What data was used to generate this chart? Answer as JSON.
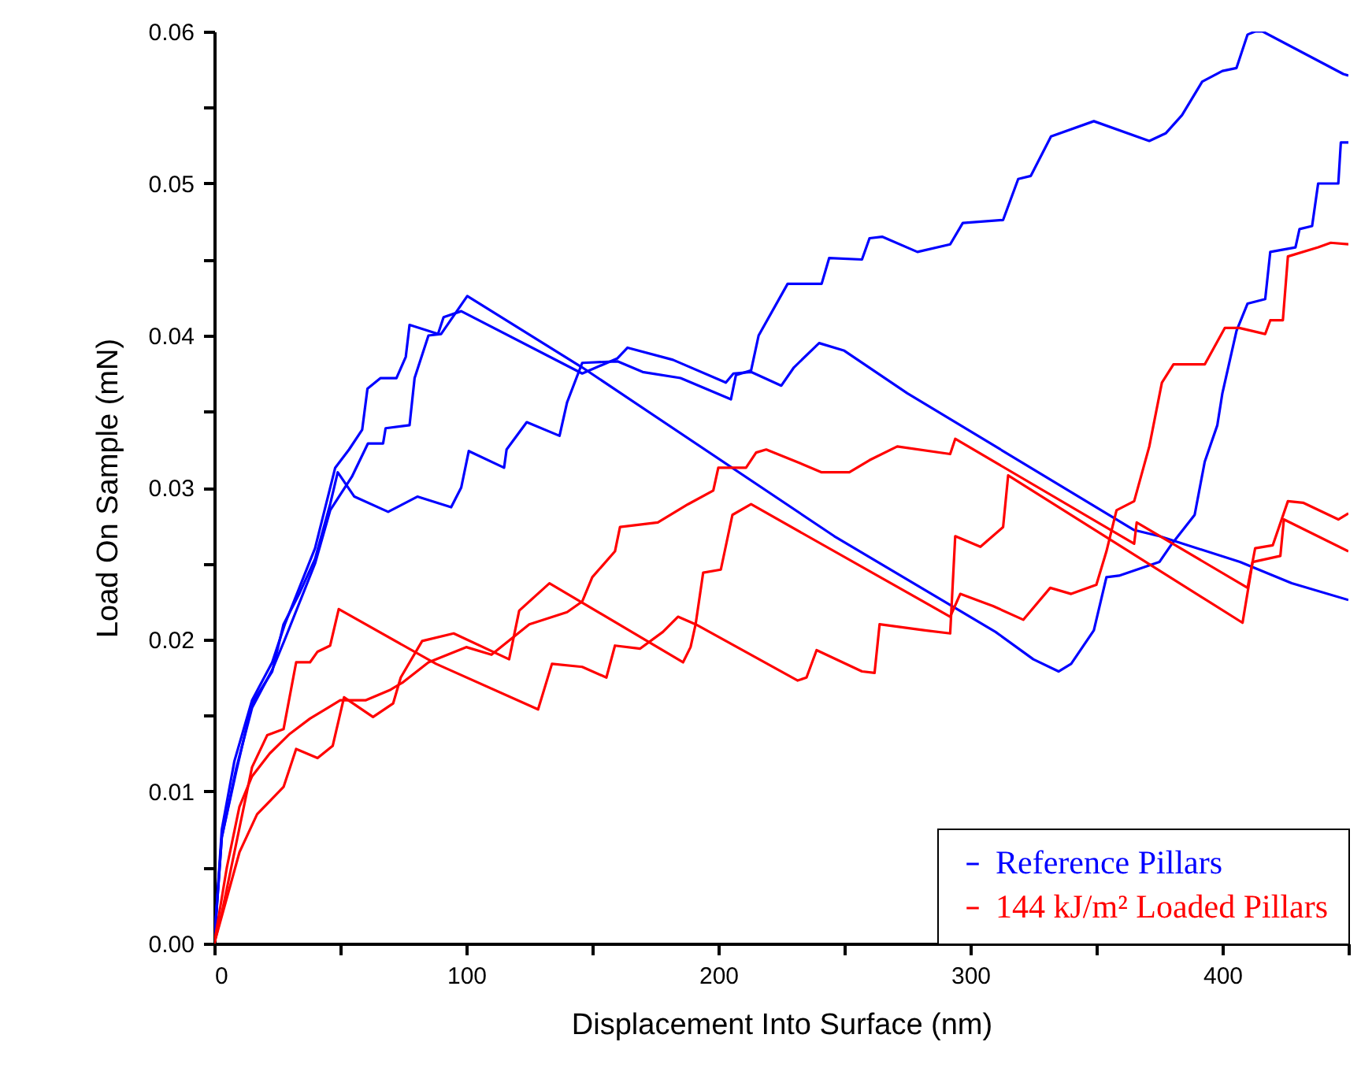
{
  "chart_data": {
    "type": "line",
    "xlabel": "Displacement Into Surface (nm)",
    "ylabel": "Load On Sample (mN)",
    "xlim": [
      0,
      450
    ],
    "ylim": [
      0,
      0.06
    ],
    "xticks": [
      0,
      {
        "value": 50,
        "label": null
      },
      100,
      {
        "value": 150,
        "label": null
      },
      200,
      {
        "value": 250,
        "label": null
      },
      300,
      {
        "value": 350,
        "label": null
      },
      400,
      {
        "value": 450,
        "label": null
      }
    ],
    "yticks": [
      {
        "value": 0,
        "label": "0.00"
      },
      {
        "value": 0.005,
        "label": null
      },
      {
        "value": 0.01,
        "label": "0.01"
      },
      {
        "value": 0.015,
        "label": null
      },
      {
        "value": 0.02,
        "label": "0.02"
      },
      {
        "value": 0.025,
        "label": null
      },
      {
        "value": 0.03,
        "label": "0.03"
      },
      {
        "value": 0.035,
        "label": null
      },
      {
        "value": 0.04,
        "label": "0.04"
      },
      {
        "value": 0.045,
        "label": null
      },
      {
        "value": 0.05,
        "label": "0.05"
      },
      {
        "value": 0.055,
        "label": null
      },
      {
        "value": 0.06,
        "label": "0.06"
      }
    ],
    "grid": false,
    "legend": "bottom right",
    "marker": "none",
    "line_style": "solid",
    "series": [
      {
        "name": "Reference Pillars",
        "color": "#0000ff",
        "x": [
          0,
          3,
          8.7,
          15,
          23,
          27.5,
          33.7,
          40,
          46,
          49,
          55.6,
          69,
          80.6,
          94,
          98,
          101,
          115,
          116,
          124,
          137,
          140,
          146,
          160,
          170,
          185,
          205,
          207,
          213,
          216,
          227.5,
          241,
          244,
          257,
          260,
          265,
          279,
          292,
          297,
          313,
          319,
          324,
          332,
          349,
          371,
          377.5,
          384,
          392,
          400,
          405.6,
          410,
          413,
          416,
          448,
          450
        ],
        "values": [
          0,
          0.007,
          0.0113,
          0.0158,
          0.0179,
          0.021,
          0.023,
          0.0253,
          0.0289,
          0.031,
          0.0294,
          0.0284,
          0.0294,
          0.0287,
          0.03,
          0.0324,
          0.0313,
          0.0325,
          0.0343,
          0.0334,
          0.0356,
          0.0382,
          0.0383,
          0.0376,
          0.0372,
          0.0358,
          0.0374,
          0.0377,
          0.04,
          0.0434,
          0.0434,
          0.0451,
          0.045,
          0.0464,
          0.0465,
          0.0455,
          0.046,
          0.0474,
          0.0476,
          0.0503,
          0.0505,
          0.0531,
          0.0541,
          0.0528,
          0.0533,
          0.0545,
          0.0567,
          0.0574,
          0.0576,
          0.0598,
          0.06,
          0.06,
          0.0572,
          0.0571
        ]
      },
      {
        "color": "#0000ff",
        "x": [
          0,
          3,
          8,
          15,
          23,
          28,
          34,
          40,
          48,
          53.5,
          58.7,
          60.8,
          66,
          72.3,
          76,
          77.5,
          88.8,
          91,
          98,
          146,
          160,
          164,
          182,
          203,
          206,
          213,
          225,
          230,
          240,
          250,
          275,
          365,
          375,
          407,
          427.5,
          450
        ],
        "values": [
          0,
          0.0075,
          0.012,
          0.016,
          0.0185,
          0.021,
          0.0235,
          0.026,
          0.0313,
          0.0325,
          0.0338,
          0.0365,
          0.0372,
          0.0372,
          0.0386,
          0.0407,
          0.0401,
          0.0412,
          0.0416,
          0.0375,
          0.0385,
          0.0392,
          0.0384,
          0.0369,
          0.0375,
          0.0376,
          0.0367,
          0.0379,
          0.0395,
          0.039,
          0.0362,
          0.0272,
          0.0268,
          0.0251,
          0.0237,
          0.0226
        ]
      },
      {
        "color": "#0000ff",
        "x": [
          0,
          3,
          8.7,
          15,
          23,
          28,
          34,
          40,
          46,
          54.6,
          61,
          67,
          68,
          77.5,
          79.5,
          85,
          90,
          100.4,
          146,
          246,
          310,
          325,
          335,
          340,
          349,
          354,
          359,
          375,
          380,
          389,
          393,
          398,
          400,
          405.6,
          410,
          417,
          419,
          429,
          430.6,
          435.6,
          438,
          446,
          447,
          450
        ],
        "values": [
          0,
          0.007,
          0.0115,
          0.0155,
          0.018,
          0.02,
          0.0225,
          0.025,
          0.0285,
          0.0307,
          0.0329,
          0.0329,
          0.0339,
          0.0341,
          0.0372,
          0.04,
          0.0401,
          0.0426,
          0.0379,
          0.0268,
          0.0205,
          0.0187,
          0.0179,
          0.0184,
          0.0206,
          0.0241,
          0.0242,
          0.0251,
          0.0263,
          0.0282,
          0.0317,
          0.0341,
          0.0362,
          0.0403,
          0.0421,
          0.0424,
          0.0455,
          0.0458,
          0.047,
          0.0472,
          0.05,
          0.05,
          0.0527,
          0.0527
        ]
      },
      {
        "name": "144 kJ/m² Loaded Pillars",
        "color": "#ff0000",
        "x": [
          0,
          10,
          17,
          27.5,
          32.5,
          41,
          47,
          51.5,
          63,
          71,
          74,
          82.5,
          95,
          117,
          121,
          133,
          186,
          189,
          191,
          194,
          201,
          205.6,
          213,
          292,
          296,
          309,
          321,
          331.7,
          340,
          350,
          354,
          358,
          365,
          371,
          376,
          380.6,
          393,
          401,
          406.7,
          417,
          419,
          424,
          426,
          438,
          443,
          450
        ],
        "values": [
          0,
          0.006,
          0.0085,
          0.0103,
          0.0128,
          0.0122,
          0.013,
          0.0162,
          0.0149,
          0.0158,
          0.0175,
          0.0199,
          0.0204,
          0.0187,
          0.0219,
          0.0237,
          0.0185,
          0.0195,
          0.021,
          0.0244,
          0.0246,
          0.0282,
          0.0289,
          0.0215,
          0.023,
          0.0222,
          0.0213,
          0.0234,
          0.023,
          0.0236,
          0.0258,
          0.0285,
          0.0291,
          0.0327,
          0.0369,
          0.0381,
          0.0381,
          0.0405,
          0.0405,
          0.0401,
          0.041,
          0.041,
          0.0452,
          0.0458,
          0.0461,
          0.046
        ]
      },
      {
        "color": "#ff0000",
        "x": [
          0,
          5,
          10,
          15,
          22,
          30,
          38,
          45,
          50,
          60,
          70,
          75,
          85,
          100,
          110,
          125,
          140,
          146,
          150,
          159,
          161,
          176,
          188,
          198,
          200,
          211,
          215,
          219,
          231,
          241,
          252,
          260,
          271,
          292,
          294,
          365,
          366,
          410,
          413,
          420,
          426,
          432,
          446,
          450
        ],
        "values": [
          0,
          0.005,
          0.009,
          0.011,
          0.0125,
          0.0138,
          0.0148,
          0.0155,
          0.016,
          0.016,
          0.0167,
          0.0172,
          0.0185,
          0.0195,
          0.019,
          0.021,
          0.0218,
          0.0225,
          0.0241,
          0.0258,
          0.0274,
          0.0277,
          0.0289,
          0.0298,
          0.0313,
          0.0313,
          0.0323,
          0.0325,
          0.0317,
          0.031,
          0.031,
          0.0318,
          0.0327,
          0.0322,
          0.0332,
          0.0263,
          0.0277,
          0.0234,
          0.026,
          0.0262,
          0.0291,
          0.029,
          0.0279,
          0.0283
        ]
      },
      {
        "color": "#ff0000",
        "x": [
          0,
          3,
          9,
          15,
          21,
          27.5,
          32.5,
          38,
          41,
          46,
          49.4,
          88,
          128.5,
          134,
          146,
          155.6,
          159,
          169,
          178,
          184,
          191,
          231.5,
          235,
          239,
          257,
          262,
          264,
          282,
          292,
          294,
          304,
          313,
          315,
          408,
          410,
          412,
          423,
          424.4,
          450
        ],
        "values": [
          0,
          0.002,
          0.0068,
          0.0116,
          0.0137,
          0.0141,
          0.0185,
          0.0185,
          0.0192,
          0.0196,
          0.022,
          0.0184,
          0.0154,
          0.0184,
          0.0182,
          0.0175,
          0.0196,
          0.0194,
          0.0205,
          0.0215,
          0.021,
          0.0173,
          0.0175,
          0.0193,
          0.0179,
          0.0178,
          0.021,
          0.0206,
          0.0204,
          0.0268,
          0.0261,
          0.0274,
          0.0308,
          0.0211,
          0.0231,
          0.0251,
          0.0255,
          0.0279,
          0.0258
        ]
      }
    ]
  }
}
